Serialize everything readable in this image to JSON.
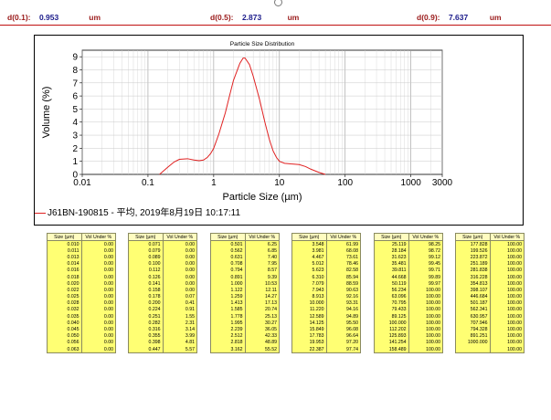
{
  "header": {
    "d01_label": "d(0.1):",
    "d01_value": "0.953",
    "d01_unit": "um",
    "d05_label": "d(0.5):",
    "d05_value": "2.873",
    "d05_unit": "um",
    "d09_label": "d(0.9):",
    "d09_value": "7.637",
    "d09_unit": "um"
  },
  "legend_text": "J61BN-190815 - 平均, 2019年8月19日 10:17:11",
  "chart_data": {
    "type": "line",
    "title": "Particle Size Distribution",
    "xlabel": "Particle Size (µm)",
    "ylabel": "Volume (%)",
    "xscale": "log",
    "xlim": [
      0.01,
      3000
    ],
    "ylim": [
      0,
      9.5
    ],
    "x_ticks": [
      0.01,
      0.1,
      1,
      10,
      100,
      1000,
      3000
    ],
    "x_tick_labels": [
      "0.01",
      "0.1",
      "1",
      "10",
      "100",
      "1000",
      "3000"
    ],
    "y_ticks": [
      0,
      1,
      2,
      3,
      4,
      5,
      6,
      7,
      8,
      9
    ],
    "y_tick_labels": [
      "0",
      "1",
      "2",
      "3",
      "4",
      "5",
      "6",
      "7",
      "8",
      "9"
    ],
    "grid": true,
    "series": [
      {
        "name": "J61BN-190815 - 平均, 2019年8月19日 10:17:11",
        "color": "#e02020",
        "x": [
          0.15,
          0.2,
          0.25,
          0.3,
          0.4,
          0.5,
          0.6,
          0.7,
          0.8,
          0.9,
          1.0,
          1.2,
          1.5,
          1.8,
          2.0,
          2.5,
          2.8,
          3.0,
          3.5,
          4.0,
          5.0,
          6.0,
          7.0,
          8.0,
          9.0,
          10.0,
          12.0,
          15.0,
          20.0,
          25.0,
          30.0,
          40.0,
          50.0
        ],
        "y": [
          0.0,
          0.55,
          0.95,
          1.15,
          1.2,
          1.1,
          1.05,
          1.1,
          1.3,
          1.6,
          2.0,
          3.1,
          4.7,
          6.3,
          7.2,
          8.5,
          8.9,
          8.9,
          8.4,
          7.5,
          5.7,
          4.0,
          2.7,
          1.8,
          1.3,
          1.0,
          0.85,
          0.8,
          0.75,
          0.6,
          0.4,
          0.15,
          0.0
        ]
      }
    ]
  },
  "table": {
    "col_size": "Size (µm)",
    "col_vol": "Vol Under %",
    "blocks": [
      [
        [
          "0.010",
          "0.00"
        ],
        [
          "0.011",
          "0.00"
        ],
        [
          "0.013",
          "0.00"
        ],
        [
          "0.014",
          "0.00"
        ],
        [
          "0.016",
          "0.00"
        ],
        [
          "0.018",
          "0.00"
        ],
        [
          "0.020",
          "0.00"
        ],
        [
          "0.022",
          "0.00"
        ],
        [
          "0.025",
          "0.00"
        ],
        [
          "0.028",
          "0.00"
        ],
        [
          "0.032",
          "0.00"
        ],
        [
          "0.035",
          "0.00"
        ],
        [
          "0.040",
          "0.00"
        ],
        [
          "0.045",
          "0.00"
        ],
        [
          "0.050",
          "0.00"
        ],
        [
          "0.056",
          "0.00"
        ],
        [
          "0.063",
          "0.00"
        ]
      ],
      [
        [
          "0.071",
          "0.00"
        ],
        [
          "0.079",
          "0.00"
        ],
        [
          "0.089",
          "0.00"
        ],
        [
          "0.100",
          "0.00"
        ],
        [
          "0.112",
          "0.00"
        ],
        [
          "0.126",
          "0.00"
        ],
        [
          "0.141",
          "0.00"
        ],
        [
          "0.158",
          "0.00"
        ],
        [
          "0.178",
          "0.07"
        ],
        [
          "0.200",
          "0.41"
        ],
        [
          "0.224",
          "0.91"
        ],
        [
          "0.251",
          "1.55"
        ],
        [
          "0.282",
          "2.31"
        ],
        [
          "0.316",
          "3.14"
        ],
        [
          "0.355",
          "3.99"
        ],
        [
          "0.398",
          "4.81"
        ],
        [
          "0.447",
          "5.57"
        ]
      ],
      [
        [
          "0.501",
          "6.25"
        ],
        [
          "0.562",
          "6.85"
        ],
        [
          "0.631",
          "7.40"
        ],
        [
          "0.708",
          "7.95"
        ],
        [
          "0.794",
          "8.57"
        ],
        [
          "0.891",
          "9.39"
        ],
        [
          "1.000",
          "10.53"
        ],
        [
          "1.122",
          "12.11"
        ],
        [
          "1.259",
          "14.27"
        ],
        [
          "1.413",
          "17.13"
        ],
        [
          "1.585",
          "20.74"
        ],
        [
          "1.778",
          "25.13"
        ],
        [
          "1.995",
          "30.27"
        ],
        [
          "2.239",
          "36.05"
        ],
        [
          "2.512",
          "42.33"
        ],
        [
          "2.818",
          "48.89"
        ],
        [
          "3.162",
          "55.52"
        ]
      ],
      [
        [
          "3.548",
          "61.99"
        ],
        [
          "3.981",
          "68.08"
        ],
        [
          "4.467",
          "73.61"
        ],
        [
          "5.012",
          "78.46"
        ],
        [
          "5.623",
          "82.58"
        ],
        [
          "6.310",
          "85.94"
        ],
        [
          "7.079",
          "88.59"
        ],
        [
          "7.943",
          "90.63"
        ],
        [
          "8.913",
          "92.16"
        ],
        [
          "10.000",
          "93.31"
        ],
        [
          "11.220",
          "94.16"
        ],
        [
          "12.589",
          "94.89"
        ],
        [
          "14.125",
          "95.50"
        ],
        [
          "15.849",
          "96.08"
        ],
        [
          "17.783",
          "96.64"
        ],
        [
          "19.953",
          "97.20"
        ],
        [
          "22.387",
          "97.74"
        ]
      ],
      [
        [
          "25.119",
          "98.25"
        ],
        [
          "28.184",
          "98.72"
        ],
        [
          "31.623",
          "99.12"
        ],
        [
          "35.481",
          "99.45"
        ],
        [
          "39.811",
          "99.71"
        ],
        [
          "44.668",
          "99.89"
        ],
        [
          "50.119",
          "99.97"
        ],
        [
          "56.234",
          "100.00"
        ],
        [
          "63.096",
          "100.00"
        ],
        [
          "70.795",
          "100.00"
        ],
        [
          "79.433",
          "100.00"
        ],
        [
          "89.125",
          "100.00"
        ],
        [
          "100.000",
          "100.00"
        ],
        [
          "112.202",
          "100.00"
        ],
        [
          "125.893",
          "100.00"
        ],
        [
          "141.254",
          "100.00"
        ],
        [
          "158.489",
          "100.00"
        ]
      ],
      [
        [
          "177.828",
          "100.00"
        ],
        [
          "199.526",
          "100.00"
        ],
        [
          "223.872",
          "100.00"
        ],
        [
          "251.189",
          "100.00"
        ],
        [
          "281.838",
          "100.00"
        ],
        [
          "316.228",
          "100.00"
        ],
        [
          "354.813",
          "100.00"
        ],
        [
          "398.107",
          "100.00"
        ],
        [
          "446.684",
          "100.00"
        ],
        [
          "501.187",
          "100.00"
        ],
        [
          "562.341",
          "100.00"
        ],
        [
          "630.957",
          "100.00"
        ],
        [
          "707.946",
          "100.00"
        ],
        [
          "794.328",
          "100.00"
        ],
        [
          "891.251",
          "100.00"
        ],
        [
          "1000.000",
          "100.00"
        ],
        [
          "",
          "100.00"
        ]
      ]
    ]
  }
}
